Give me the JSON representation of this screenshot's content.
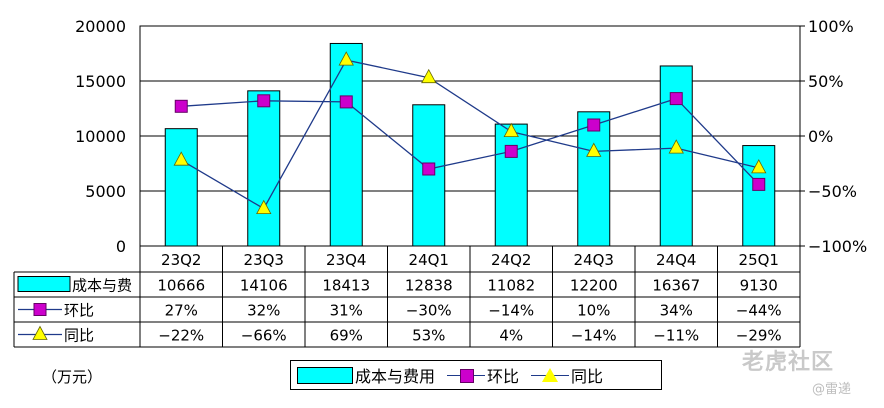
{
  "chart_data": {
    "type": "bar+line",
    "categories": [
      "23Q2",
      "23Q3",
      "23Q4",
      "24Q1",
      "24Q2",
      "24Q3",
      "24Q4",
      "25Q1"
    ],
    "unit_label": "（万元）",
    "y_left": {
      "min": 0,
      "max": 20000,
      "ticks": [
        "0",
        "5000",
        "10000",
        "15000",
        "20000"
      ]
    },
    "y_right": {
      "min": -100,
      "max": 100,
      "ticks": [
        "-100%",
        "-50%",
        "0%",
        "50%",
        "100%"
      ]
    },
    "series": [
      {
        "name": "成本与费用",
        "table_label": "成本与费",
        "kind": "bar",
        "axis": "left",
        "color": "#00ffff",
        "values": [
          10666,
          14106,
          18413,
          12838,
          11082,
          12200,
          16367,
          9130
        ],
        "labels": [
          "10666",
          "14106",
          "18413",
          "12838",
          "11082",
          "12200",
          "16367",
          "9130"
        ]
      },
      {
        "name": "环比",
        "table_label": "环比",
        "kind": "line",
        "marker": "square",
        "axis": "right",
        "color": "#cc00cc",
        "values": [
          27,
          32,
          31,
          -30,
          -14,
          10,
          34,
          -44
        ],
        "labels": [
          "27%",
          "32%",
          "31%",
          "-30%",
          "-14%",
          "10%",
          "34%",
          "-44%"
        ]
      },
      {
        "name": "同比",
        "table_label": "同比",
        "kind": "line",
        "marker": "triangle",
        "axis": "right",
        "color": "#ffff00",
        "values": [
          -22,
          -66,
          69,
          53,
          4,
          -14,
          -11,
          -29
        ],
        "labels": [
          "-22%",
          "-66%",
          "69%",
          "53%",
          "4%",
          "-14%",
          "-11%",
          "-29%"
        ]
      }
    ],
    "grid": "horizontal",
    "legend_position": "bottom"
  },
  "watermark": {
    "brand": "老虎社区",
    "author": "@雷递"
  }
}
